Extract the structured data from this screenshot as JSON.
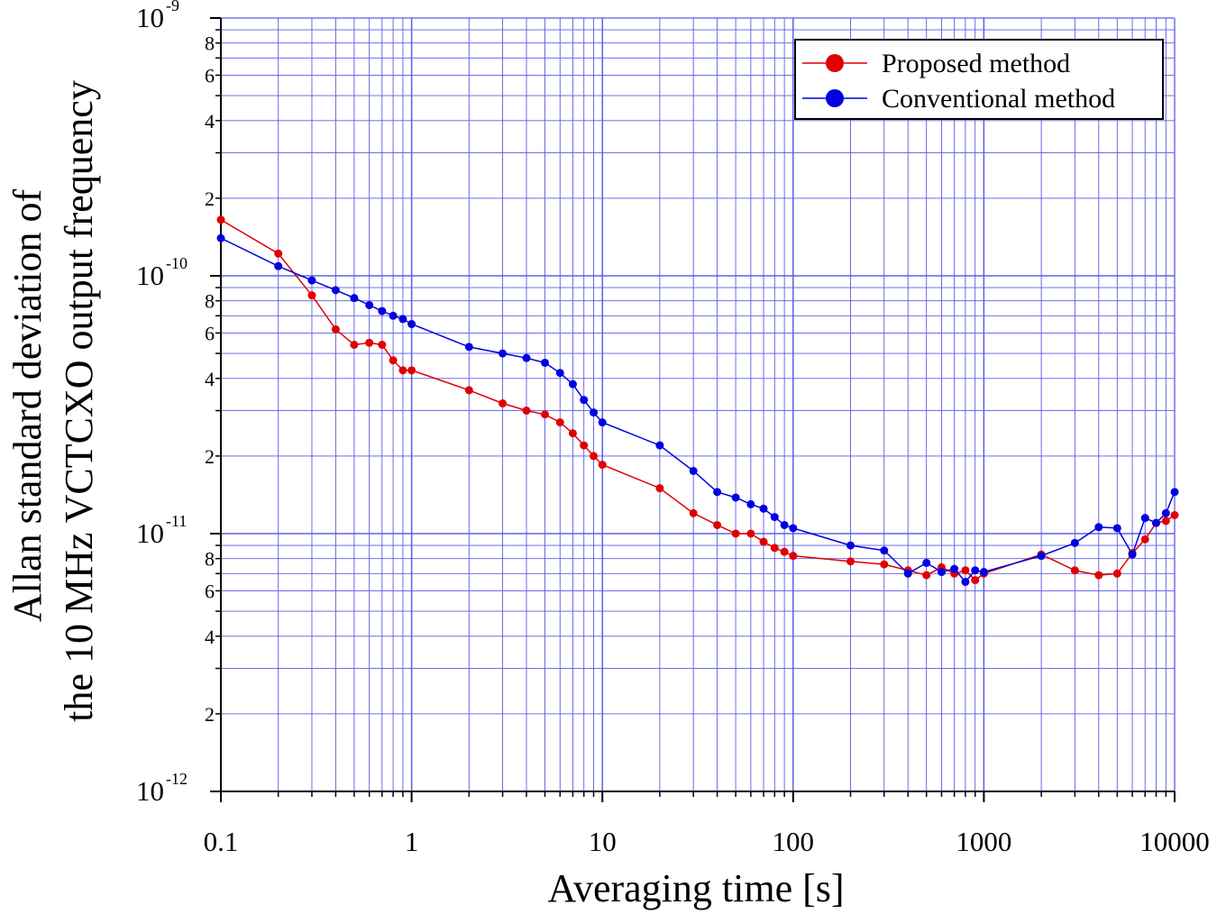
{
  "chart_data": {
    "type": "line",
    "title": "",
    "xlabel": "Averaging time [s]",
    "ylabel_line1": "Allan standard deviation of",
    "ylabel_line2": "the 10 MHz VCTCXO output frequency",
    "xscale": "log",
    "yscale": "log",
    "xlim": [
      0.1,
      10000
    ],
    "ylim": [
      1e-12,
      1e-09
    ],
    "grid": true,
    "legend_position": "top-right",
    "x_tick_labels": [
      "0.1",
      "1",
      "10",
      "100",
      "1000",
      "10000"
    ],
    "y_major_ticks": [
      {
        "base": "10",
        "exp": "-12"
      },
      {
        "base": "10",
        "exp": "-11"
      },
      {
        "base": "10",
        "exp": "-10"
      },
      {
        "base": "10",
        "exp": "-9"
      }
    ],
    "y_minor_tick_labels": [
      "2",
      "4",
      "6",
      "8"
    ],
    "series": [
      {
        "name": "Proposed method",
        "color": "#e00000",
        "x": [
          0.1,
          0.2,
          0.3,
          0.4,
          0.5,
          0.6,
          0.7,
          0.8,
          0.9,
          1,
          2,
          3,
          4,
          5,
          6,
          7,
          8,
          9,
          10,
          20,
          30,
          40,
          50,
          60,
          70,
          80,
          90,
          100,
          200,
          300,
          400,
          500,
          600,
          700,
          800,
          900,
          1000,
          2000,
          3000,
          4000,
          5000,
          6000,
          7000,
          8000,
          9000,
          10000
        ],
        "y": [
          1.65e-10,
          1.22e-10,
          8.4e-11,
          6.2e-11,
          5.4e-11,
          5.5e-11,
          5.4e-11,
          4.7e-11,
          4.3e-11,
          4.3e-11,
          3.6e-11,
          3.2e-11,
          3e-11,
          2.9e-11,
          2.7e-11,
          2.45e-11,
          2.2e-11,
          2e-11,
          1.85e-11,
          1.5e-11,
          1.2e-11,
          1.08e-11,
          1e-11,
          1e-11,
          9.3e-12,
          8.8e-12,
          8.5e-12,
          8.2e-12,
          7.8e-12,
          7.6e-12,
          7.2e-12,
          6.9e-12,
          7.4e-12,
          7e-12,
          7.2e-12,
          6.6e-12,
          7e-12,
          8.3e-12,
          7.2e-12,
          6.9e-12,
          7e-12,
          8.4e-12,
          9.5e-12,
          1.1e-11,
          1.12e-11,
          1.18e-11
        ]
      },
      {
        "name": "Conventional method",
        "color": "#0000e0",
        "x": [
          0.1,
          0.2,
          0.3,
          0.4,
          0.5,
          0.6,
          0.7,
          0.8,
          0.9,
          1,
          2,
          3,
          4,
          5,
          6,
          7,
          8,
          9,
          10,
          20,
          30,
          40,
          50,
          60,
          70,
          80,
          90,
          100,
          200,
          300,
          400,
          500,
          600,
          700,
          800,
          900,
          1000,
          2000,
          3000,
          4000,
          5000,
          6000,
          7000,
          8000,
          9000,
          10000
        ],
        "y": [
          1.4e-10,
          1.09e-10,
          9.6e-11,
          8.8e-11,
          8.2e-11,
          7.7e-11,
          7.3e-11,
          7e-11,
          6.8e-11,
          6.5e-11,
          5.3e-11,
          5e-11,
          4.8e-11,
          4.6e-11,
          4.2e-11,
          3.8e-11,
          3.3e-11,
          2.95e-11,
          2.7e-11,
          2.2e-11,
          1.75e-11,
          1.45e-11,
          1.38e-11,
          1.3e-11,
          1.25e-11,
          1.16e-11,
          1.08e-11,
          1.05e-11,
          9e-12,
          8.6e-12,
          7e-12,
          7.7e-12,
          7.1e-12,
          7.3e-12,
          6.5e-12,
          7.2e-12,
          7.1e-12,
          8.2e-12,
          9.2e-12,
          1.06e-11,
          1.05e-11,
          8.3e-12,
          1.15e-11,
          1.1e-11,
          1.2e-11,
          1.45e-11
        ]
      }
    ]
  }
}
